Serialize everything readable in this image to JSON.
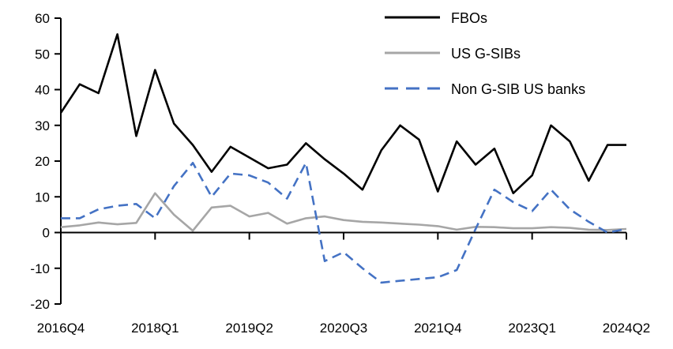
{
  "figure": {
    "background": "#ffffff",
    "axis_color": "#000000"
  },
  "chart_data": {
    "type": "line",
    "title": "",
    "xlabel": "",
    "ylabel": "",
    "grid": false,
    "legend_position": "top-right",
    "ylim": [
      -20,
      60
    ],
    "y_ticks": [
      60,
      50,
      40,
      30,
      20,
      10,
      0,
      -10,
      -20
    ],
    "x_tick_labels": [
      "2016Q4",
      "2018Q1",
      "2019Q2",
      "2020Q3",
      "2021Q4",
      "2023Q1",
      "2024Q2"
    ],
    "x_tick_every": 5,
    "categories": [
      "2016Q4",
      "2017Q1",
      "2017Q2",
      "2017Q3",
      "2017Q4",
      "2018Q1",
      "2018Q2",
      "2018Q3",
      "2018Q4",
      "2019Q1",
      "2019Q2",
      "2019Q3",
      "2019Q4",
      "2020Q1",
      "2020Q2",
      "2020Q3",
      "2020Q4",
      "2021Q1",
      "2021Q2",
      "2021Q3",
      "2021Q4",
      "2022Q1",
      "2022Q2",
      "2022Q3",
      "2022Q4",
      "2023Q1",
      "2023Q2",
      "2023Q3",
      "2023Q4",
      "2024Q1",
      "2024Q2"
    ],
    "series": [
      {
        "name": "FBOs",
        "color": "#000000",
        "style": "solid",
        "values": [
          33.5,
          41.5,
          39,
          55.5,
          27,
          45.5,
          30.5,
          24.5,
          17,
          24,
          21,
          18,
          19,
          25,
          20.5,
          16.5,
          12,
          23,
          30,
          26,
          11.5,
          25.5,
          19,
          23.5,
          11,
          16,
          30,
          25.5,
          14.5,
          24.5,
          24.5
        ]
      },
      {
        "name": "US G-SIBs",
        "color": "#a6a6a6",
        "style": "solid",
        "values": [
          1.5,
          2,
          2.8,
          2.3,
          2.7,
          11,
          5,
          0.5,
          7,
          7.5,
          4.5,
          5.5,
          2.5,
          4,
          4.5,
          3.5,
          3,
          2.8,
          2.5,
          2.2,
          1.8,
          0.8,
          1.6,
          1.5,
          1.2,
          1.2,
          1.5,
          1.3,
          0.8,
          0.7,
          1
        ]
      },
      {
        "name": "Non G-SIB US banks",
        "color": "#4472c4",
        "style": "dashed",
        "values": [
          4,
          4,
          6.5,
          7.5,
          8,
          4,
          13,
          19.5,
          10,
          16.5,
          16,
          14,
          9.5,
          19.5,
          -8,
          -5.5,
          -10,
          -14,
          -13.5,
          -13,
          -12.5,
          -10.5,
          1,
          12,
          8.5,
          6,
          12,
          6.5,
          3,
          0,
          1
        ]
      }
    ]
  }
}
